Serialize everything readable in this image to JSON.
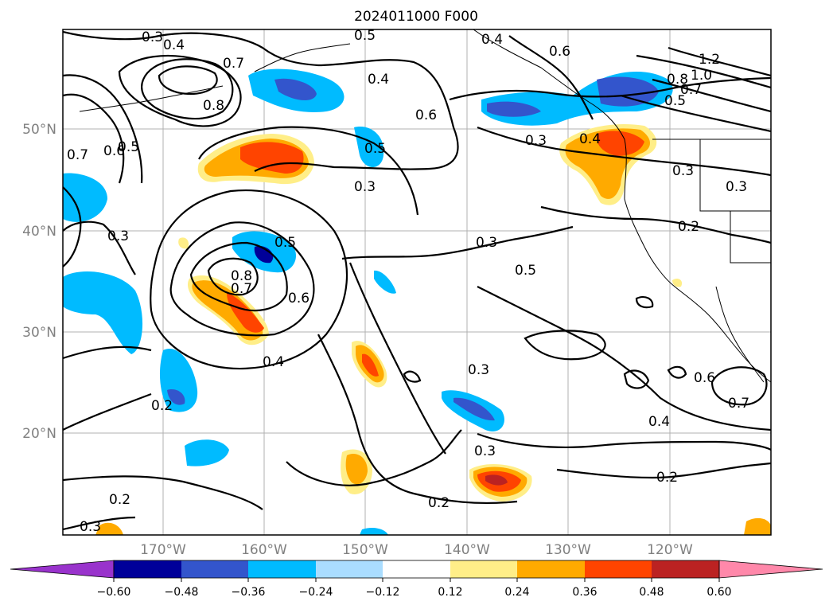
{
  "title": "2024011000 F000",
  "lat_ticks": [
    "50°N",
    "40°N",
    "30°N",
    "20°N"
  ],
  "lon_ticks": [
    "170°W",
    "160°W",
    "150°W",
    "140°W",
    "130°W",
    "120°W"
  ],
  "colorbar": {
    "labels": [
      "−0.60",
      "−0.48",
      "−0.36",
      "−0.24",
      "−0.12",
      "0.12",
      "0.24",
      "0.36",
      "0.48",
      "0.60"
    ],
    "colors": [
      "#9933cc",
      "#000099",
      "#3355cc",
      "#00bbff",
      "#aaddff",
      "#ffffff",
      "#ffee88",
      "#ffaa00",
      "#ff4400",
      "#bb2222",
      "#ff88aa"
    ]
  },
  "contour_labels": [
    "0.3",
    "0.4",
    "0.5",
    "0.4",
    "0.6",
    "1.2",
    "1.0",
    "0.8",
    "0.7",
    "0.5",
    "0.7",
    "0.8",
    "0.4",
    "0.6",
    "0.5",
    "0.7",
    "0.6",
    "0.5",
    "0.3",
    "0.4",
    "0.3",
    "0.3",
    "0.3",
    "0.2",
    "0.3",
    "0.5",
    "0.5",
    "0.8",
    "0.7",
    "0.6",
    "0.4",
    "0.3",
    "0.2",
    "0.3",
    "0.4",
    "0.6",
    "0.7",
    "0.2",
    "0.2",
    "0.2",
    "0.3"
  ]
}
